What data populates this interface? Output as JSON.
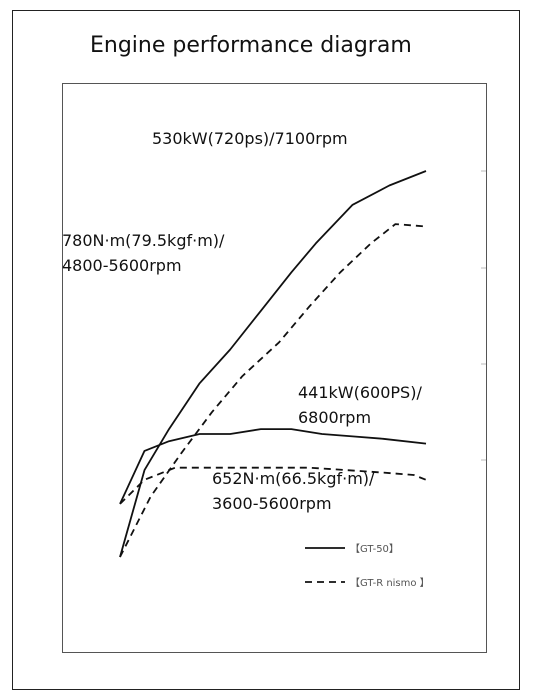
{
  "chart_data": {
    "type": "line",
    "title": "Engine performance diagram",
    "xlabel": "",
    "ylabel": "",
    "grid": false,
    "legend_position": "bottom-right",
    "series": [
      {
        "name": "【GT-50】",
        "style": "solid",
        "color": "#111111",
        "curves": {
          "power": [
            [
              0,
              0
            ],
            [
              8,
              36
            ],
            [
              16,
              53
            ],
            [
              26,
              72
            ],
            [
              36,
              86
            ],
            [
              46,
              102
            ],
            [
              56,
              118
            ],
            [
              64,
              130
            ],
            [
              76,
              146
            ],
            [
              88,
              154
            ],
            [
              100,
              160
            ]
          ],
          "torque": [
            [
              0,
              22
            ],
            [
              8,
              44
            ],
            [
              16,
              48
            ],
            [
              26,
              51
            ],
            [
              36,
              51
            ],
            [
              46,
              53
            ],
            [
              56,
              53
            ],
            [
              66,
              51
            ],
            [
              76,
              50
            ],
            [
              86,
              49
            ],
            [
              100,
              47
            ]
          ]
        }
      },
      {
        "name": "【GT-R nismo 】",
        "style": "dashed",
        "color": "#111111",
        "curves": {
          "power": [
            [
              0,
              0
            ],
            [
              10,
              25
            ],
            [
              20,
              43
            ],
            [
              30,
              60
            ],
            [
              40,
              75
            ],
            [
              52,
              89
            ],
            [
              62,
              104
            ],
            [
              72,
              118
            ],
            [
              82,
              130
            ],
            [
              90,
              138
            ],
            [
              100,
              137
            ]
          ],
          "torque": [
            [
              0,
              22
            ],
            [
              8,
              32
            ],
            [
              18,
              37
            ],
            [
              30,
              37
            ],
            [
              40,
              37
            ],
            [
              52,
              37
            ],
            [
              62,
              37
            ],
            [
              74,
              36
            ],
            [
              86,
              35
            ],
            [
              96,
              34
            ],
            [
              100,
              32
            ]
          ]
        }
      }
    ],
    "annotations": [
      {
        "id": "gt50-power",
        "text": "530kW(720ps)/7100rpm"
      },
      {
        "id": "gt50-torque",
        "lines": [
          "780N·m(79.5kgf·m)/",
          "4800-5600rpm"
        ]
      },
      {
        "id": "nismo-power",
        "lines": [
          "441kW(600PS)/",
          "6800rpm"
        ]
      },
      {
        "id": "nismo-torque",
        "lines": [
          "652N·m(66.5kgf·m)/",
          "3600-5600rpm"
        ]
      }
    ]
  }
}
